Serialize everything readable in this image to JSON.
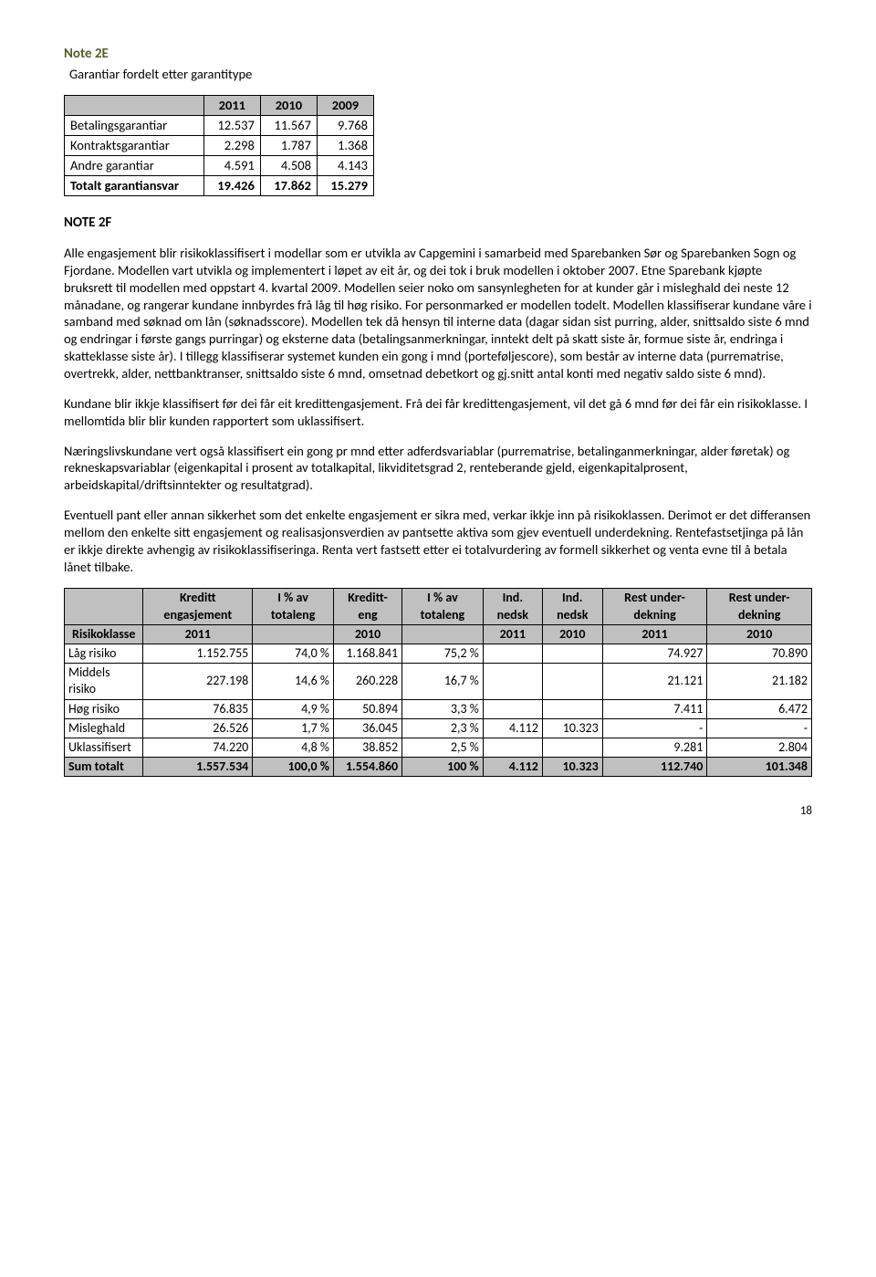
{
  "note2e": {
    "title": "Note 2E",
    "subtitle": "Garantiar fordelt etter garantitype",
    "headers": [
      "",
      "2011",
      "2010",
      "2009"
    ],
    "rows": [
      {
        "label": "Betalingsgarantiar",
        "v": [
          "12.537",
          "11.567",
          "9.768"
        ]
      },
      {
        "label": "Kontraktsgarantiar",
        "v": [
          "2.298",
          "1.787",
          "1.368"
        ]
      },
      {
        "label": "Andre garantiar",
        "v": [
          "4.591",
          "4.508",
          "4.143"
        ]
      }
    ],
    "total": {
      "label": "Totalt garantiansvar",
      "v": [
        "19.426",
        "17.862",
        "15.279"
      ]
    }
  },
  "note2f": {
    "title": "NOTE 2F",
    "p1": "Alle engasjement blir risikoklassifisert i modellar som er utvikla av Capgemini i samarbeid med Sparebanken Sør og Sparebanken Sogn og Fjordane. Modellen vart utvikla og implementert i løpet av eit år, og dei tok i bruk modellen i oktober 2007. Etne Sparebank kjøpte bruksrett til modellen med oppstart 4. kvartal 2009. Modellen seier noko om sansynlegheten for at kunder går i misleghald dei neste 12 månadane, og rangerar kundane innbyrdes frå låg til høg risiko. For personmarked er modellen todelt. Modellen klassifiserar kundane våre i samband med søknad om lån (søknadsscore). Modellen tek då hensyn til interne data (dagar sidan sist purring, alder, snittsaldo siste 6 mnd og endringar i første gangs purringar) og eksterne data (betalingsanmerkningar, inntekt delt på skatt siste år, formue siste år, endringa i skatteklasse siste år). I tillegg klassifiserar systemet kunden ein gong i mnd (porteføljescore), som består av interne data (purrematrise, overtrekk, alder, nettbanktranser, snittsaldo siste 6 mnd, omsetnad debetkort og gj.snitt antal konti med negativ saldo siste 6 mnd).",
    "p2": "Kundane blir ikkje klassifisert før dei får eit kredittengasjement. Frå dei får kredittengasjement, vil det gå 6 mnd før dei får ein risikoklasse. I mellomtida blir blir kunden rapportert som uklassifisert.",
    "p3": "Næringslivskundane vert også klassifisert ein gong pr mnd etter adferdsvariablar (purrematrise, betalinganmerkningar, alder føretak) og rekneskapsvariablar (eigenkapital i prosent av totalkapital, likviditetsgrad 2, renteberande gjeld, eigenkapitalprosent, arbeidskapital/driftsinntekter og resultatgrad).",
    "p4": "Eventuell pant eller annan sikkerhet som det enkelte engasjement er sikra med, verkar ikkje inn på risikoklassen. Derimot er det differansen mellom den enkelte sitt engasjement og realisasjonsverdien av pantsette aktiva som gjev eventuell underdekning. Rentefastsetjinga på lån er ikkje direkte avhengig av risikoklassifiseringa. Renta vert fastsett etter ei totalvurdering av formell sikkerhet og venta evne til å betala lånet tilbake."
  },
  "riskTable": {
    "head1": [
      "",
      "Kreditt engasjement",
      "I % av totaleng",
      "Kreditt- eng",
      "I % av totaleng",
      "Ind. nedsk",
      "Ind. nedsk",
      "Rest under- dekning",
      "Rest under- dekning"
    ],
    "head2": [
      "Risikoklasse",
      "2011",
      "",
      "2010",
      "",
      "2011",
      "2010",
      "2011",
      "2010"
    ],
    "rows": [
      {
        "label": "Låg risiko",
        "c": [
          "1.152.755",
          "74,0 %",
          "1.168.841",
          "75,2 %",
          "",
          "",
          "74.927",
          "70.890"
        ]
      },
      {
        "label": "Middels risiko",
        "c": [
          "227.198",
          "14,6 %",
          "260.228",
          "16,7 %",
          "",
          "",
          "21.121",
          "21.182"
        ]
      },
      {
        "label": "Høg risiko",
        "c": [
          "76.835",
          "4,9 %",
          "50.894",
          "3,3 %",
          "",
          "",
          "7.411",
          "6.472"
        ]
      },
      {
        "label": "Misleghald",
        "c": [
          "26.526",
          "1,7 %",
          "36.045",
          "2,3 %",
          "4.112",
          "10.323",
          "-",
          "-"
        ]
      },
      {
        "label": "Uklassifisert",
        "c": [
          "74.220",
          "4,8 %",
          "38.852",
          "2,5 %",
          "",
          "",
          "9.281",
          "2.804"
        ]
      }
    ],
    "sum": {
      "label": "Sum totalt",
      "c": [
        "1.557.534",
        "100,0 %",
        "1.554.860",
        "100 %",
        "4.112",
        "10.323",
        "112.740",
        "101.348"
      ]
    }
  },
  "pageNumber": "18"
}
